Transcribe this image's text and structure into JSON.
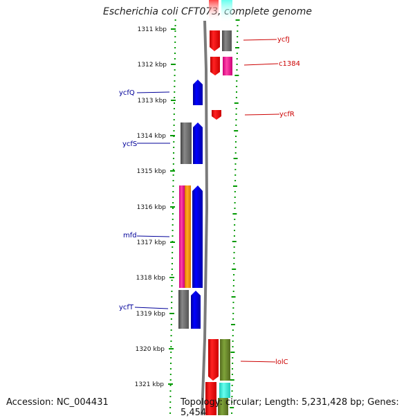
{
  "title": "Escherichia coli CFT073, complete genome",
  "footer": {
    "accession": "Accession: NC_004431",
    "topology": "Topology: circular; Length: 5,231,428 bp; Genes: 5,454"
  },
  "colors": {
    "backbone": "#808080",
    "dots": "#009900",
    "left_labels": "#000099",
    "right_labels": "#cc0000",
    "tick": "#009900"
  },
  "kbp_labels": [
    "1311 kbp",
    "1312 kbp",
    "1313 kbp",
    "1314 kbp",
    "1315 kbp",
    "1316 kbp",
    "1317 kbp",
    "1318 kbp",
    "1319 kbp",
    "1320 kbp",
    "1321 kbp"
  ],
  "gene_labels_left": [
    "ycfQ",
    "ycfS",
    "mfd",
    "ycfT"
  ],
  "gene_labels_right": [
    "ycfJ",
    "c1384",
    "ycfR",
    "lolC"
  ]
}
